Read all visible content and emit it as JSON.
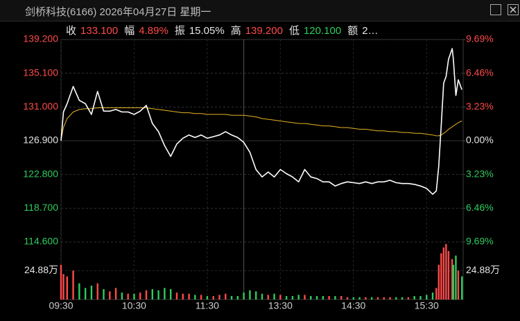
{
  "chart_data": {
    "type": "line",
    "title": "剑桥科技(6166) 2026年04月27日 星期一",
    "stats": [
      {
        "label": "收",
        "value": "133.100",
        "color": "#ff4a4a"
      },
      {
        "label": "幅",
        "value": "4.89%",
        "color": "#ff4a4a"
      },
      {
        "label": "振",
        "value": "15.05%",
        "color": "#e6e6e6"
      },
      {
        "label": "高",
        "value": "139.200",
        "color": "#ff4a4a"
      },
      {
        "label": "低",
        "value": "120.100",
        "color": "#2ecc5e"
      },
      {
        "label": "额",
        "value": "2…",
        "color": "#e6e6e6"
      }
    ],
    "x": [
      0,
      2,
      5,
      10,
      15,
      20,
      25,
      30,
      35,
      40,
      45,
      50,
      55,
      60,
      65,
      70,
      75,
      80,
      85,
      90,
      95,
      100,
      105,
      110,
      115,
      120,
      125,
      130,
      135,
      140,
      145,
      150,
      155,
      160,
      165,
      170,
      175,
      180,
      185,
      190,
      195,
      200,
      205,
      210,
      215,
      220,
      225,
      230,
      235,
      240,
      245,
      250,
      255,
      260,
      265,
      270,
      275,
      280,
      285,
      290,
      295,
      300,
      305,
      308,
      310,
      312,
      314,
      316,
      318,
      321,
      322,
      324,
      326,
      329
    ],
    "xlim": [
      0,
      330
    ],
    "xticks": [
      {
        "value": 0,
        "label": "09:30"
      },
      {
        "value": 60,
        "label": "10:30"
      },
      {
        "value": 120,
        "label": "11:30"
      },
      {
        "value": 180,
        "label": "13:30"
      },
      {
        "value": 240,
        "label": "14:30"
      },
      {
        "value": 300,
        "label": "15:30"
      }
    ],
    "session_break": 150,
    "ylim": [
      114.6,
      139.2
    ],
    "yticks": [
      {
        "value": 139.2,
        "label": "139.200"
      },
      {
        "value": 135.1,
        "label": "135.100"
      },
      {
        "value": 131,
        "label": "131.000"
      },
      {
        "value": 126.9,
        "label": "126.900"
      },
      {
        "value": 122.8,
        "label": "122.800"
      },
      {
        "value": 118.7,
        "label": "118.700"
      },
      {
        "value": 114.6,
        "label": "114.600"
      }
    ],
    "y2lim": [
      -9.69,
      9.69
    ],
    "y2ticks": [
      {
        "value": 9.69,
        "label": "9.69%"
      },
      {
        "value": 6.46,
        "label": "6.46%"
      },
      {
        "value": 3.23,
        "label": "3.23%"
      },
      {
        "value": 0,
        "label": "0.00%"
      },
      {
        "value": -3.23,
        "label": "3.23%"
      },
      {
        "value": -6.46,
        "label": "6.46%"
      },
      {
        "value": -9.69,
        "label": "9.69%"
      }
    ],
    "grid": true,
    "up_color": "#ff4a4a",
    "down_color": "#2ecc5e",
    "series": [
      {
        "color": "#ffffff",
        "values": [
          126.9,
          130.4,
          131.4,
          133.5,
          131.8,
          131.4,
          130.1,
          132.9,
          130.5,
          130.5,
          130.7,
          130.4,
          130.4,
          130.1,
          130.5,
          131.2,
          129.0,
          128.0,
          126.3,
          125.0,
          126.5,
          127.2,
          127.6,
          127.3,
          127.6,
          127.2,
          127.4,
          127.6,
          128.0,
          127.6,
          127.3,
          126.7,
          125.5,
          123.4,
          122.5,
          123.1,
          122.5,
          123.4,
          122.9,
          122.5,
          121.9,
          123.4,
          122.5,
          122.3,
          121.9,
          121.9,
          121.4,
          121.7,
          121.9,
          121.8,
          121.7,
          121.9,
          121.7,
          121.9,
          121.9,
          122.1,
          121.8,
          121.7,
          121.7,
          121.6,
          121.4,
          121.1,
          120.4,
          120.8,
          123.8,
          128.8,
          133.9,
          134.7,
          136.8,
          138.1,
          136.8,
          132.4,
          134.3,
          133.1
        ]
      },
      {
        "color": "#e6b422",
        "values": [
          126.9,
          128.5,
          129.6,
          130.4,
          130.7,
          130.8,
          130.8,
          130.9,
          130.9,
          130.9,
          130.9,
          130.9,
          130.9,
          130.9,
          130.9,
          130.9,
          130.8,
          130.7,
          130.6,
          130.5,
          130.4,
          130.3,
          130.3,
          130.2,
          130.2,
          130.1,
          130.1,
          130.1,
          130.1,
          130.0,
          130.0,
          130.0,
          129.9,
          129.8,
          129.6,
          129.5,
          129.4,
          129.3,
          129.2,
          129.1,
          129.0,
          129.0,
          128.9,
          128.8,
          128.7,
          128.7,
          128.6,
          128.5,
          128.5,
          128.4,
          128.3,
          128.3,
          128.2,
          128.1,
          128.1,
          128.0,
          128.0,
          127.9,
          127.9,
          127.8,
          127.8,
          127.7,
          127.6,
          127.5,
          127.5,
          127.6,
          127.8,
          128.0,
          128.3,
          128.6,
          128.7,
          128.9,
          129.1,
          129.3
        ]
      }
    ],
    "volume": {
      "ylim": [
        0,
        49.76
      ],
      "yticks": [
        {
          "value": 24.88,
          "label": "24.88万"
        }
      ],
      "values": [
        30,
        22,
        20,
        25,
        14,
        10,
        12,
        14,
        9,
        7,
        10,
        6,
        5,
        5,
        6,
        8,
        9,
        8,
        10,
        9,
        6,
        5,
        5,
        4,
        4,
        3,
        3,
        4,
        5,
        3,
        3,
        6,
        8,
        7,
        5,
        4,
        5,
        4,
        3,
        3,
        4,
        4,
        3,
        3,
        3,
        3,
        3,
        3,
        2,
        2,
        2,
        2,
        2,
        2,
        2,
        2,
        2,
        2,
        2,
        3,
        3,
        4,
        6,
        10,
        30,
        40,
        45,
        48,
        42,
        35,
        30,
        38,
        25,
        20
      ]
    }
  }
}
